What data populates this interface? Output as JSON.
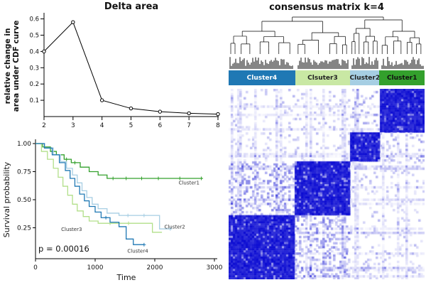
{
  "chart_data": [
    {
      "id": "delta_area",
      "type": "line",
      "title": "Delta area",
      "ylabel_lines": [
        "relative change in",
        "area under CDF curve"
      ],
      "x": [
        2,
        3,
        4,
        5,
        6,
        7,
        8
      ],
      "y": [
        0.4,
        0.58,
        0.1,
        0.05,
        0.03,
        0.02,
        0.015
      ],
      "xticks": [
        "2",
        "3",
        "4",
        "5",
        "6",
        "7",
        "8"
      ],
      "yticks": [
        "0.1",
        "0.2",
        "0.3",
        "0.4",
        "0.5",
        "0.6"
      ],
      "ylim": [
        0,
        0.62
      ],
      "marker": "open-circle",
      "line_color": "#000000",
      "grid": false
    },
    {
      "id": "survival",
      "type": "line",
      "subtype": "kaplan-meier-step",
      "xlabel": "Time",
      "ylabel": "Survival probability",
      "xticks": [
        0,
        1000,
        2000,
        3000
      ],
      "yticks": [
        "1.00",
        "0.75",
        "0.50",
        "0.25"
      ],
      "xlim": [
        0,
        3000
      ],
      "ylim": [
        0,
        1
      ],
      "p_value_label": "p = 0.00016",
      "grid": false,
      "series": [
        {
          "name": "Cluster1",
          "color": "#33a02c",
          "label_pos": [
            2400,
            0.65
          ],
          "steps": [
            [
              120,
              0.97
            ],
            [
              250,
              0.93
            ],
            [
              350,
              0.9
            ],
            [
              480,
              0.86
            ],
            [
              600,
              0.83
            ],
            [
              750,
              0.79
            ],
            [
              900,
              0.75
            ],
            [
              1050,
              0.72
            ],
            [
              1200,
              0.69
            ],
            [
              2800,
              0.69
            ]
          ],
          "censor": [
            [
              520,
              0.86
            ],
            [
              660,
              0.83
            ],
            [
              1300,
              0.69
            ],
            [
              1520,
              0.69
            ],
            [
              1780,
              0.69
            ],
            [
              2060,
              0.69
            ],
            [
              2420,
              0.69
            ],
            [
              2780,
              0.69
            ]
          ]
        },
        {
          "name": "Cluster2",
          "color": "#a6cee3",
          "label_pos": [
            2160,
            0.255
          ],
          "steps": [
            [
              150,
              0.96
            ],
            [
              300,
              0.9
            ],
            [
              420,
              0.84
            ],
            [
              520,
              0.78
            ],
            [
              620,
              0.72
            ],
            [
              700,
              0.65
            ],
            [
              780,
              0.58
            ],
            [
              860,
              0.52
            ],
            [
              950,
              0.46
            ],
            [
              1050,
              0.42
            ],
            [
              1200,
              0.38
            ],
            [
              1400,
              0.36
            ],
            [
              2000,
              0.36
            ],
            [
              2080,
              0.24
            ],
            [
              2260,
              0.24
            ]
          ],
          "censor": [
            [
              1550,
              0.36
            ],
            [
              1820,
              0.36
            ],
            [
              2260,
              0.24
            ]
          ]
        },
        {
          "name": "Cluster3",
          "color": "#b2df8a",
          "label_pos": [
            430,
            0.235
          ],
          "steps": [
            [
              100,
              0.93
            ],
            [
              200,
              0.86
            ],
            [
              300,
              0.78
            ],
            [
              380,
              0.7
            ],
            [
              460,
              0.62
            ],
            [
              540,
              0.54
            ],
            [
              620,
              0.46
            ],
            [
              700,
              0.4
            ],
            [
              800,
              0.35
            ],
            [
              900,
              0.31
            ],
            [
              1050,
              0.29
            ],
            [
              1900,
              0.29
            ],
            [
              1960,
              0.21
            ],
            [
              2120,
              0.21
            ]
          ],
          "censor": [
            [
              1250,
              0.29
            ],
            [
              1560,
              0.29
            ]
          ]
        },
        {
          "name": "Cluster4",
          "color": "#1f78b4",
          "label_pos": [
            1540,
            0.04
          ],
          "steps": [
            [
              150,
              0.96
            ],
            [
              280,
              0.9
            ],
            [
              400,
              0.83
            ],
            [
              500,
              0.76
            ],
            [
              580,
              0.69
            ],
            [
              660,
              0.62
            ],
            [
              740,
              0.55
            ],
            [
              820,
              0.49
            ],
            [
              900,
              0.44
            ],
            [
              1000,
              0.39
            ],
            [
              1100,
              0.34
            ],
            [
              1250,
              0.3
            ],
            [
              1400,
              0.26
            ],
            [
              1520,
              0.15
            ],
            [
              1640,
              0.1
            ],
            [
              1820,
              0.1
            ]
          ],
          "censor": [
            [
              1180,
              0.34
            ],
            [
              1820,
              0.1
            ]
          ]
        }
      ]
    },
    {
      "id": "consensus",
      "type": "heatmap",
      "title": "consensus matrix k=4",
      "pattern": "block-diagonal",
      "palette": {
        "low": "#ffffff",
        "high": "#0a0ad2"
      },
      "dendrogram": true,
      "clusters": [
        {
          "name": "Cluster4",
          "color": "#1f78b4",
          "text_color": "#ffffff",
          "fraction": 0.34
        },
        {
          "name": "Clsuter3",
          "color": "#c9e8a4",
          "text_color": "#222222",
          "fraction": 0.28
        },
        {
          "name": "Cluster2",
          "color": "#a6cee3",
          "text_color": "#222222",
          "fraction": 0.15
        },
        {
          "name": "Cluster1",
          "color": "#33a02c",
          "text_color": "#111111",
          "fraction": 0.23
        }
      ]
    }
  ]
}
